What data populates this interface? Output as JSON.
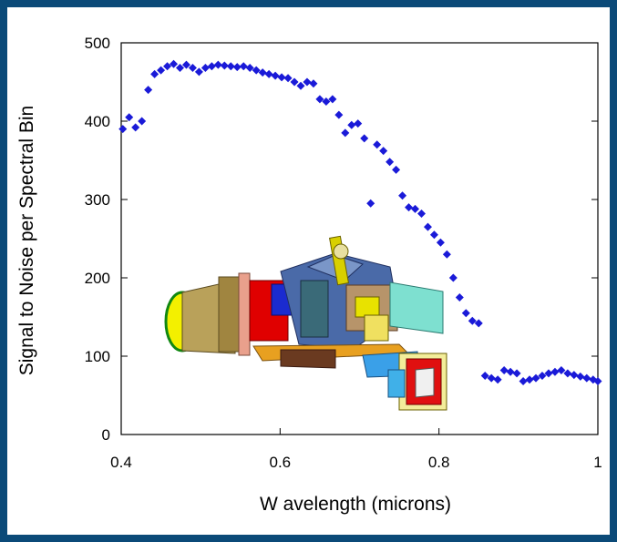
{
  "chart_data": {
    "type": "scatter",
    "title": "",
    "xlabel": "W avelength (microns)",
    "ylabel": "Signal to Noise per Spectral Bin",
    "xlim": [
      0.4,
      1.0
    ],
    "ylim": [
      0,
      500
    ],
    "x_ticks": [
      0.4,
      0.6,
      0.8,
      1.0
    ],
    "x_tick_labels": [
      "0.4",
      "0.6",
      "0.8",
      "1"
    ],
    "y_ticks": [
      0,
      100,
      200,
      300,
      400,
      500
    ],
    "y_tick_labels": [
      "0",
      "100",
      "200",
      "300",
      "400",
      "500"
    ],
    "grid": false,
    "marker_color": "#1a1ad8",
    "series": [
      {
        "x": [
          0.402,
          0.41,
          0.418,
          0.426,
          0.434,
          0.442,
          0.45,
          0.458,
          0.466,
          0.474,
          0.482,
          0.49,
          0.498,
          0.506,
          0.514,
          0.522,
          0.53,
          0.538,
          0.546,
          0.554,
          0.562,
          0.57,
          0.578,
          0.586,
          0.594,
          0.602,
          0.61,
          0.618,
          0.626,
          0.634,
          0.642,
          0.65,
          0.658,
          0.666,
          0.674,
          0.682,
          0.69,
          0.698,
          0.706,
          0.714,
          0.722,
          0.73,
          0.738,
          0.746,
          0.754,
          0.762,
          0.77,
          0.778,
          0.786,
          0.794,
          0.802,
          0.81,
          0.818,
          0.826,
          0.834,
          0.842,
          0.85,
          0.858,
          0.866,
          0.874,
          0.882,
          0.89,
          0.898,
          0.906,
          0.914,
          0.922,
          0.93,
          0.938,
          0.946,
          0.954,
          0.962,
          0.97,
          0.978,
          0.986,
          0.994,
          1.0
        ],
        "y": [
          390,
          405,
          392,
          400,
          440,
          460,
          465,
          470,
          473,
          468,
          472,
          468,
          463,
          468,
          470,
          472,
          471,
          470,
          469,
          470,
          468,
          465,
          462,
          460,
          458,
          456,
          455,
          450,
          445,
          450,
          448,
          428,
          425,
          428,
          408,
          385,
          395,
          397,
          378,
          295,
          370,
          362,
          348,
          338,
          305,
          290,
          288,
          282,
          265,
          255,
          245,
          230,
          200,
          175,
          155,
          145,
          142,
          75,
          72,
          70,
          82,
          80,
          78,
          68,
          70,
          72,
          75,
          78,
          80,
          82,
          78,
          76,
          74,
          72,
          70,
          68
        ],
        "y_actual_note": ""
      }
    ],
    "inset_image": "camera-instrument-illustration"
  }
}
